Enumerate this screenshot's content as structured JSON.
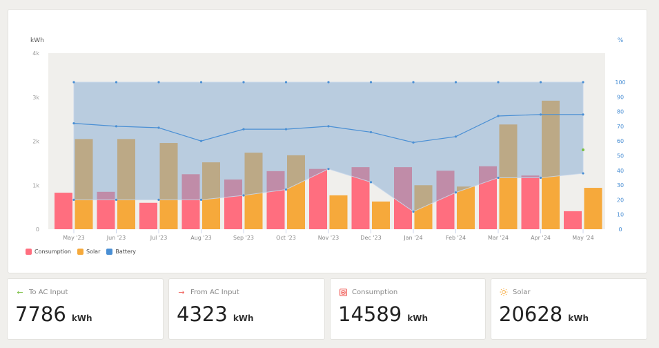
{
  "chart_data": {
    "type": "bar",
    "categories": [
      "May '23",
      "Jun '23",
      "Jul '23",
      "Aug '23",
      "Sep '23",
      "Oct '23",
      "Nov '23",
      "Dec '23",
      "Jan '24",
      "Feb '24",
      "Mar '24",
      "Apr '24",
      "May '24"
    ],
    "series": [
      {
        "name": "Consumption",
        "axis": "left",
        "color": "#ff6e7f",
        "values": [
          830,
          850,
          600,
          1250,
          1130,
          1320,
          1370,
          1410,
          1410,
          1330,
          1430,
          1220,
          410
        ]
      },
      {
        "name": "Solar",
        "axis": "left",
        "color": "#f6a93b",
        "values": [
          2050,
          2050,
          1960,
          1520,
          1740,
          1680,
          770,
          630,
          1000,
          970,
          2380,
          2920,
          940
        ]
      },
      {
        "name": "Battery max",
        "axis": "right",
        "color": "#4a8fd4",
        "values": [
          100,
          100,
          100,
          100,
          100,
          100,
          100,
          100,
          100,
          100,
          100,
          100,
          100
        ]
      },
      {
        "name": "Battery avg",
        "axis": "right",
        "color": "#4a8fd4",
        "values": [
          72,
          70,
          69,
          60,
          68,
          68,
          70,
          66,
          59,
          63,
          77,
          78,
          78
        ]
      },
      {
        "name": "Battery min",
        "axis": "right",
        "color": "#4a8fd4",
        "values": [
          20,
          20,
          20,
          20,
          23,
          27,
          41,
          32,
          12,
          25,
          35,
          35,
          38
        ]
      }
    ],
    "battery_current": {
      "value": 54,
      "color": "#7bc043"
    },
    "ylabel_left": "kWh",
    "ylabel_right": "%",
    "yticks_left": [
      "0",
      "1k",
      "2k",
      "3k",
      "4k"
    ],
    "ylim_left": [
      0,
      4000
    ],
    "yticks_right": [
      "0",
      "10",
      "20",
      "30",
      "40",
      "50",
      "60",
      "70",
      "80",
      "90",
      "100"
    ],
    "ylim_right": [
      0,
      120
    ],
    "legend": [
      {
        "label": "Consumption",
        "color": "#ff6e7f"
      },
      {
        "label": "Solar",
        "color": "#f6a93b"
      },
      {
        "label": "Battery",
        "color": "#4a8fd4"
      }
    ],
    "legend_position": "bottom-left"
  },
  "stats": [
    {
      "label": "To AC Input",
      "value": "7786",
      "unit": "kWh",
      "icon": "arrow-left-icon",
      "icon_color": "#7bc043"
    },
    {
      "label": "From AC Input",
      "value": "4323",
      "unit": "kWh",
      "icon": "arrow-right-icon",
      "icon_color": "#f0625d"
    },
    {
      "label": "Consumption",
      "value": "14589",
      "unit": "kWh",
      "icon": "consumption-icon",
      "icon_color": "#f0625d"
    },
    {
      "label": "Solar",
      "value": "20628",
      "unit": "kWh",
      "icon": "sun-icon",
      "icon_color": "#f6a93b"
    }
  ]
}
